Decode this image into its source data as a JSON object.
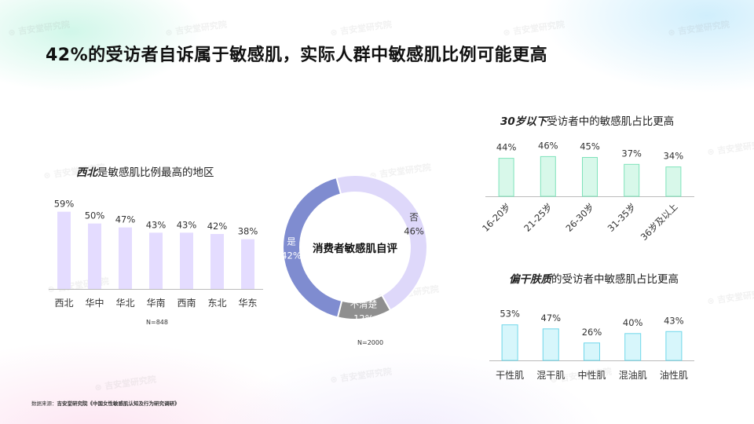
{
  "title": "42%的受访者自诉属于敏感肌，实际人群中敏感肌比例可能更高",
  "source": {
    "prefix": "数据来源：",
    "org": "吉安堂研究院",
    "report": "《中国女性敏感肌认知及行为研究调研》"
  },
  "watermark": "吉安堂研究院",
  "colors": {
    "region_bar": "#e4dcff",
    "age_bar_fill": "#d8f8ea",
    "age_bar_stroke": "#7fe3bb",
    "skin_bar_fill": "#d7f6fb",
    "skin_bar_stroke": "#6fd7ea",
    "donut_yes": "#7f8cd0",
    "donut_no": "#ded8fa",
    "donut_unsure": "#8f8f8f",
    "axis": "#bbbbbb"
  },
  "chart_data": [
    {
      "type": "bar",
      "id": "region",
      "title_bold": "西北",
      "title_rest": "是敏感肌比例最高的地区",
      "categories": [
        "西北",
        "华中",
        "华北",
        "华南",
        "西南",
        "东北",
        "华东"
      ],
      "values": [
        59,
        50,
        47,
        43,
        43,
        42,
        38
      ],
      "labels": [
        "59%",
        "50%",
        "47%",
        "43%",
        "43%",
        "42%",
        "38%"
      ],
      "unit": "%",
      "ylim": [
        0,
        60
      ],
      "note": "N=848"
    },
    {
      "type": "pie",
      "id": "self_eval",
      "center_label": "消费者敏感肌自评",
      "slices": [
        {
          "name": "是",
          "value": 42,
          "label": "42%"
        },
        {
          "name": "否",
          "value": 46,
          "label": "46%"
        },
        {
          "name": "不清楚",
          "value": 12,
          "label": "12%"
        }
      ],
      "note": "N=2000"
    },
    {
      "type": "bar",
      "id": "age",
      "title_bold": "30岁以下",
      "title_rest": "受访者中的敏感肌占比更高",
      "categories": [
        "16-20岁",
        "21-25岁",
        "26-30岁",
        "31-35岁",
        "36岁及以上"
      ],
      "values": [
        44,
        46,
        45,
        37,
        34
      ],
      "labels": [
        "44%",
        "46%",
        "45%",
        "37%",
        "34%"
      ],
      "unit": "%",
      "ylim": [
        0,
        50
      ]
    },
    {
      "type": "bar",
      "id": "skin",
      "title_bold": "偏干肤质",
      "title_rest": "的受访者中敏感肌占比更高",
      "categories": [
        "干性肌",
        "混干肌",
        "中性肌",
        "混油肌",
        "油性肌"
      ],
      "values": [
        53,
        47,
        26,
        40,
        43
      ],
      "labels": [
        "53%",
        "47%",
        "26%",
        "40%",
        "43%"
      ],
      "unit": "%",
      "ylim": [
        0,
        55
      ]
    }
  ]
}
